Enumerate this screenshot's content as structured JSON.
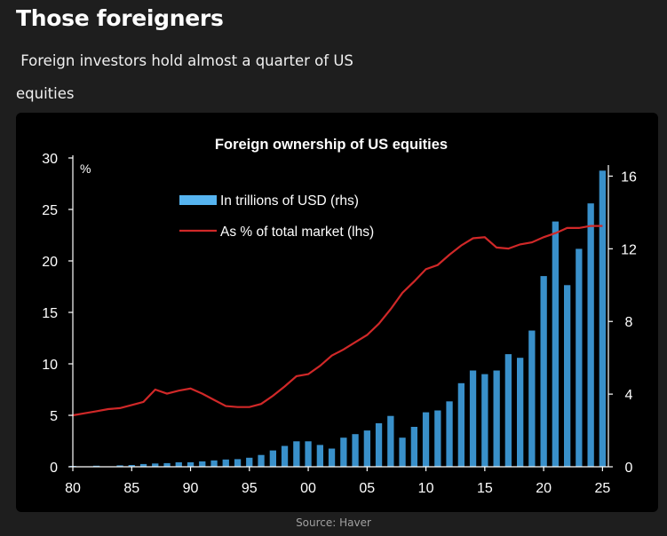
{
  "header": {
    "title": "Those foreigners",
    "subtitle": " Foreign investors hold almost a quarter of US equities"
  },
  "footer": {
    "source": "Source: Haver"
  },
  "colors": {
    "bar": "#3fa0e0",
    "line": "#d02828",
    "legend_bar": "#56b4f0"
  },
  "chart_data": {
    "type": "bar+line",
    "title": "Foreign ownership of US equities",
    "ylabel_left": "%",
    "ylim_left": [
      0,
      30
    ],
    "yticks_left": [
      0,
      5,
      10,
      15,
      20,
      25,
      30
    ],
    "ylim_right": [
      0,
      17
    ],
    "yticks_right": [
      0,
      4,
      8,
      12,
      16
    ],
    "xlim": [
      1980,
      2025.5
    ],
    "xtick_labels": [
      "80",
      "85",
      "90",
      "95",
      "00",
      "05",
      "10",
      "15",
      "20",
      "25"
    ],
    "xtick_years": [
      1980,
      1985,
      1990,
      1995,
      2000,
      2005,
      2010,
      2015,
      2020,
      2025
    ],
    "legend_position": "top-left",
    "series": [
      {
        "name": "In trillions of USD (rhs)",
        "type": "bar",
        "axis": "right",
        "x": [
          1980,
          1982,
          1984,
          1985,
          1986,
          1987,
          1988,
          1989,
          1990,
          1991,
          1992,
          1993,
          1994,
          1995,
          1996,
          1997,
          1998,
          1999,
          2000,
          2001,
          2002,
          2003,
          2004,
          2005,
          2006,
          2007,
          2008,
          2009,
          2010,
          2011,
          2012,
          2013,
          2014,
          2015,
          2016,
          2017,
          2018,
          2019,
          2020,
          2021,
          2022,
          2023,
          2024,
          2025
        ],
        "values": [
          0.05,
          0.06,
          0.08,
          0.1,
          0.15,
          0.18,
          0.2,
          0.25,
          0.25,
          0.3,
          0.35,
          0.4,
          0.42,
          0.5,
          0.65,
          0.9,
          1.15,
          1.4,
          1.4,
          1.2,
          1.0,
          1.6,
          1.8,
          2.0,
          2.4,
          2.8,
          1.6,
          2.2,
          3.0,
          3.1,
          3.6,
          4.6,
          5.3,
          5.1,
          5.3,
          6.2,
          6.0,
          7.5,
          10.5,
          13.5,
          10.0,
          12.0,
          14.5,
          16.3
        ]
      },
      {
        "name": "As % of total market (lhs)",
        "type": "line",
        "axis": "left",
        "x": [
          1980,
          1981,
          1982,
          1983,
          1984,
          1985,
          1986,
          1987,
          1988,
          1989,
          1990,
          1991,
          1992,
          1993,
          1994,
          1995,
          1996,
          1997,
          1998,
          1999,
          2000,
          2001,
          2002,
          2003,
          2004,
          2005,
          2006,
          2007,
          2008,
          2009,
          2010,
          2011,
          2012,
          2013,
          2014,
          2015,
          2016,
          2017,
          2018,
          2019,
          2020,
          2021,
          2022,
          2023,
          2024,
          2025
        ],
        "values": [
          5.0,
          5.2,
          5.4,
          5.6,
          5.7,
          6.0,
          6.3,
          7.5,
          7.1,
          7.4,
          7.6,
          7.1,
          6.5,
          5.9,
          5.8,
          5.8,
          6.1,
          6.9,
          7.8,
          8.8,
          9.0,
          9.8,
          10.8,
          11.4,
          12.1,
          12.8,
          13.9,
          15.3,
          16.9,
          18.0,
          19.2,
          19.6,
          20.6,
          21.5,
          22.2,
          22.3,
          21.3,
          21.2,
          21.6,
          21.8,
          22.3,
          22.7,
          23.2,
          23.2,
          23.4,
          23.4
        ]
      }
    ]
  }
}
